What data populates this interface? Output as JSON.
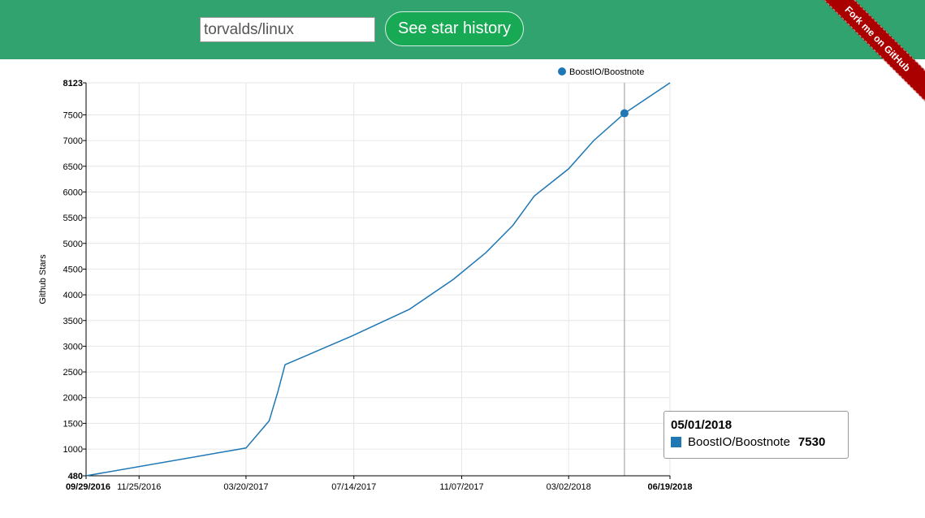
{
  "header": {
    "repo_input_value": "torvalds/linux",
    "button_label": "See star history",
    "ribbon_label": "Fork me on GitHub",
    "background_color": "#31a36e",
    "button_color": "#18a955",
    "ribbon_color": "#aa0000"
  },
  "tooltip": {
    "date": "05/01/2018",
    "series": "BoostIO/Boostnote",
    "value": "7530"
  },
  "chart_data": {
    "type": "line",
    "title": "",
    "xlabel": "",
    "ylabel": "Github Stars",
    "legend": {
      "label": "BoostIO/Boostnote",
      "position": "top-right"
    },
    "grid": true,
    "series_color": "#1f77b4",
    "xlim": [
      "2016-09-29",
      "2018-06-19"
    ],
    "ylim": [
      480,
      8123
    ],
    "y_ticks": [
      480,
      1000,
      1500,
      2000,
      2500,
      3000,
      3500,
      4000,
      4500,
      5000,
      5500,
      6000,
      6500,
      7000,
      7500,
      8123
    ],
    "x_ticks": [
      {
        "date": "2016-09-29",
        "label": "09/29/2016",
        "bold": true
      },
      {
        "date": "2016-11-25",
        "label": "11/25/2016",
        "bold": false
      },
      {
        "date": "2017-03-20",
        "label": "03/20/2017",
        "bold": false
      },
      {
        "date": "2017-07-14",
        "label": "07/14/2017",
        "bold": false
      },
      {
        "date": "2017-11-07",
        "label": "11/07/2017",
        "bold": false
      },
      {
        "date": "2018-03-02",
        "label": "03/02/2018",
        "bold": false
      },
      {
        "date": "2018-06-19",
        "label": "06/19/2018",
        "bold": true
      }
    ],
    "series": [
      {
        "name": "BoostIO/Boostnote",
        "points": [
          {
            "x": "2016-09-29",
            "y": 480
          },
          {
            "x": "2017-03-20",
            "y": 1020
          },
          {
            "x": "2017-04-14",
            "y": 1550
          },
          {
            "x": "2017-04-23",
            "y": 2100
          },
          {
            "x": "2017-05-01",
            "y": 2640
          },
          {
            "x": "2017-07-12",
            "y": 3200
          },
          {
            "x": "2017-09-12",
            "y": 3720
          },
          {
            "x": "2017-10-29",
            "y": 4300
          },
          {
            "x": "2017-12-03",
            "y": 4820
          },
          {
            "x": "2018-01-01",
            "y": 5350
          },
          {
            "x": "2018-01-24",
            "y": 5920
          },
          {
            "x": "2018-03-02",
            "y": 6450
          },
          {
            "x": "2018-03-29",
            "y": 7000
          },
          {
            "x": "2018-05-01",
            "y": 7530
          },
          {
            "x": "2018-06-19",
            "y": 8123
          }
        ]
      }
    ],
    "highlight": {
      "x": "2018-05-01",
      "y": 7530
    }
  }
}
